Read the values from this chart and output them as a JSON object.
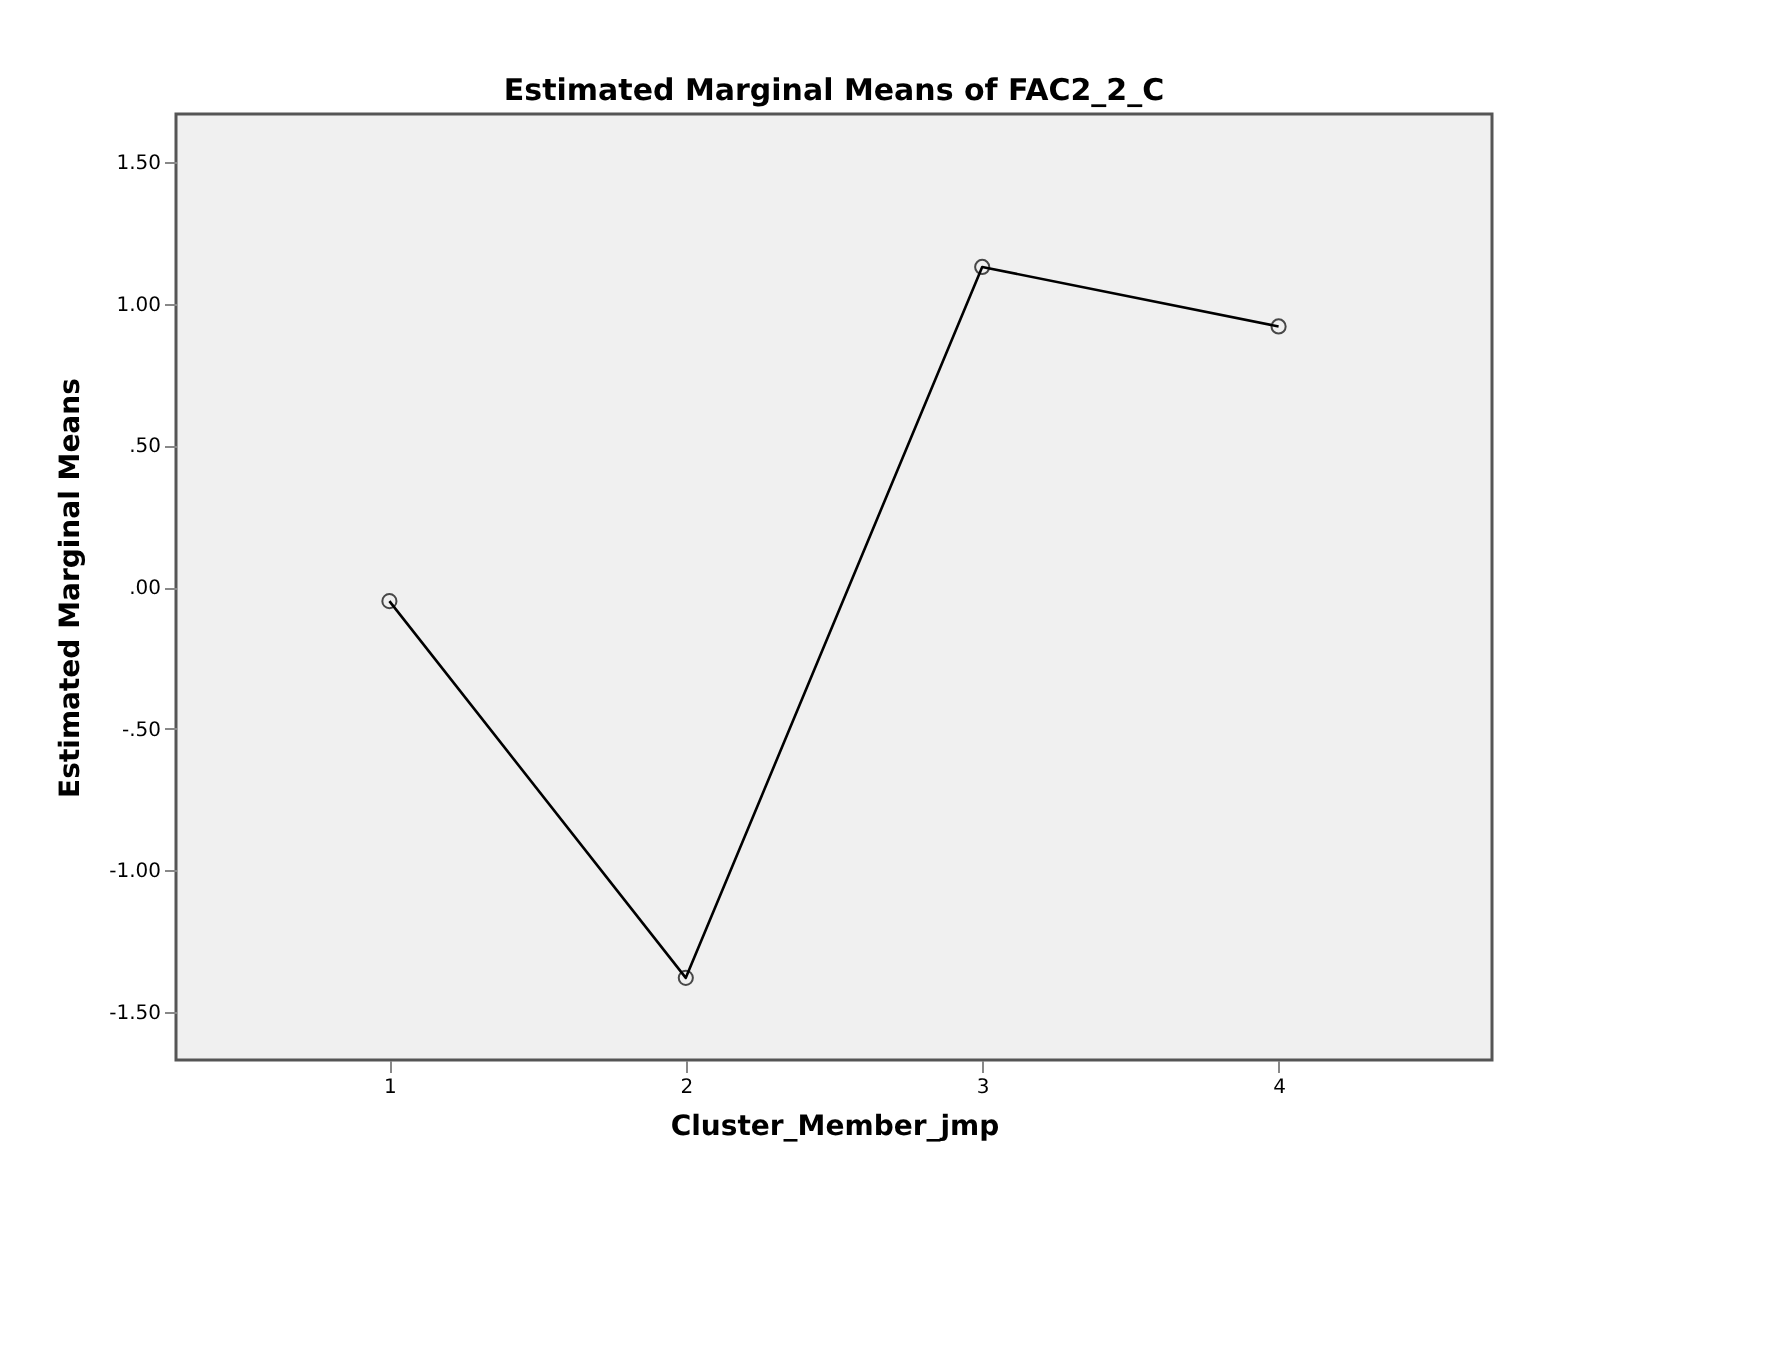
{
  "chart_data": {
    "type": "line",
    "title": "Estimated Marginal Means of FAC2_2_C",
    "xlabel": "Cluster_Member_jmp",
    "ylabel": "Estimated Marginal Means",
    "x": [
      1,
      2,
      3,
      4
    ],
    "series": [
      {
        "color": "#000000",
        "values": [
          -0.05,
          -1.38,
          1.13,
          0.92
        ]
      }
    ],
    "xlim": [
      0.28,
      4.72
    ],
    "xticks": [
      1,
      2,
      3,
      4
    ],
    "ylim": [
      -1.67,
      1.67
    ],
    "yticks": [
      {
        "value": -1.5,
        "label": "-1.50"
      },
      {
        "value": -1.0,
        "label": "-1.00"
      },
      {
        "value": -0.5,
        "label": "-.50"
      },
      {
        "value": 0.0,
        "label": ".00"
      },
      {
        "value": 0.5,
        "label": ".50"
      },
      {
        "value": 1.0,
        "label": "1.00"
      },
      {
        "value": 1.5,
        "label": "1.50"
      }
    ],
    "marker": "circle",
    "line_style": "solid",
    "grid": false
  }
}
